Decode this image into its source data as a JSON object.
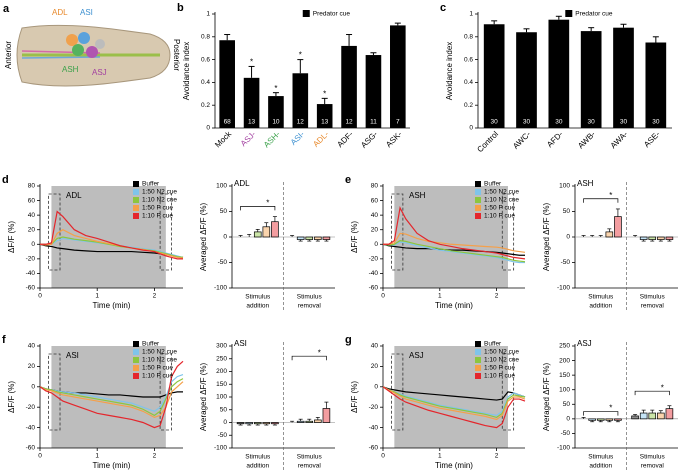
{
  "panel_a": {
    "letter": "a",
    "labels": [
      "ADL",
      "ASI",
      "ASH",
      "ASJ",
      "Anterior",
      "Posterior"
    ]
  },
  "chart_data": [
    {
      "type": "bar",
      "panel": "b",
      "y_label": "Avoidance index",
      "legend": "Predator cue",
      "color": "#000000",
      "categories": [
        "Mock",
        "ASJ-",
        "ASH-",
        "ASI-",
        "ADL-",
        "ADF-",
        "ASG-",
        "ASK-"
      ],
      "category_colors": [
        "#000000",
        "#a23fa0",
        "#3aa14a",
        "#3b8fd0",
        "#e8892b",
        "#000000",
        "#000000",
        "#000000"
      ],
      "values": [
        0.77,
        0.44,
        0.28,
        0.48,
        0.21,
        0.72,
        0.64,
        0.9
      ],
      "errors": [
        0.05,
        0.1,
        0.03,
        0.12,
        0.05,
        0.1,
        0.02,
        0.02
      ],
      "n": [
        68,
        13,
        10,
        12,
        13,
        12,
        11,
        7
      ],
      "significance": [
        null,
        "*",
        "*",
        "*",
        "*",
        null,
        null,
        null
      ],
      "ylim": [
        0,
        1
      ],
      "yticks": [
        0,
        0.2,
        0.4,
        0.6,
        0.8,
        1
      ]
    },
    {
      "type": "bar",
      "panel": "c",
      "y_label": "Avoidance index",
      "legend": "Predator cue",
      "color": "#000000",
      "categories": [
        "Control",
        "AWC-",
        "AFD-",
        "AWB-",
        "AWA-",
        "ASE-"
      ],
      "category_colors": [
        "#000000",
        "#000000",
        "#000000",
        "#000000",
        "#000000",
        "#000000"
      ],
      "values": [
        0.91,
        0.84,
        0.95,
        0.85,
        0.88,
        0.75
      ],
      "errors": [
        0.03,
        0.03,
        0.03,
        0.03,
        0.03,
        0.05
      ],
      "n": [
        30,
        30,
        30,
        30,
        30,
        30
      ],
      "ylim": [
        0,
        1
      ],
      "yticks": [
        0,
        0.2,
        0.4,
        0.6,
        0.8,
        1
      ]
    },
    {
      "type": "line",
      "panel": "d",
      "label": "ADL",
      "x_label": "Time (min)",
      "y_label": "ΔF/F (%)",
      "x": [
        0,
        0.1,
        0.2,
        0.3,
        0.4,
        0.6,
        0.8,
        1.0,
        1.2,
        1.4,
        1.6,
        1.8,
        2.0,
        2.1,
        2.2,
        2.3,
        2.4,
        2.5
      ],
      "xlim": [
        0,
        2.5
      ],
      "xticks": [
        0,
        1,
        2
      ],
      "ylim": [
        -60,
        80
      ],
      "yticks": [
        -60,
        -40,
        -20,
        0,
        20,
        40,
        60,
        80
      ],
      "shade": [
        0.2,
        2.2
      ],
      "windows": [
        [
          0.15,
          0.35
        ],
        [
          2.1,
          2.3
        ]
      ],
      "series": [
        {
          "name": "Buffer",
          "color": "#000000",
          "values": [
            0,
            -2,
            -3,
            -5,
            -6,
            -8,
            -9,
            -10,
            -10,
            -10,
            -10,
            -11,
            -12,
            -13,
            -14,
            -15,
            -17,
            -18
          ]
        },
        {
          "name": "1:50 N2 cue",
          "color": "#7fc4ea",
          "values": [
            0,
            0,
            0,
            5,
            8,
            6,
            4,
            2,
            0,
            -2,
            -4,
            -6,
            -8,
            -10,
            -12,
            -14,
            -16,
            -18
          ]
        },
        {
          "name": "1:10 N2 cue",
          "color": "#8cc63f",
          "values": [
            0,
            0,
            0,
            8,
            10,
            7,
            5,
            3,
            0,
            -3,
            -5,
            -7,
            -9,
            -11,
            -13,
            -15,
            -17,
            -18
          ]
        },
        {
          "name": "1:50 P cue",
          "color": "#f5a04a",
          "values": [
            0,
            -1,
            0,
            15,
            20,
            12,
            8,
            4,
            1,
            -2,
            -5,
            -7,
            -10,
            -12,
            -14,
            -16,
            -18,
            -19
          ]
        },
        {
          "name": "1:10 P cue",
          "color": "#e4262c",
          "values": [
            0,
            0,
            2,
            45,
            38,
            20,
            12,
            8,
            3,
            -2,
            -5,
            -8,
            -10,
            -13,
            -16,
            -18,
            -20,
            -20
          ]
        }
      ]
    },
    {
      "type": "bar",
      "label": "ADL",
      "y_label": "Averaged ΔF/F (%)",
      "groups": [
        [
          "Stimulus",
          "addition"
        ],
        [
          "Stimulus",
          "removal"
        ]
      ],
      "ylim": [
        -100,
        100
      ],
      "yticks": [
        -100,
        -50,
        0,
        50,
        100
      ],
      "series": [
        {
          "color": "#000000",
          "values": [
            0,
            0
          ],
          "errors": [
            3,
            3
          ]
        },
        {
          "color": "#7fc4ea",
          "values": [
            0,
            -5
          ],
          "errors": [
            5,
            3
          ]
        },
        {
          "color": "#8cc63f",
          "values": [
            10,
            -5
          ],
          "errors": [
            5,
            3
          ]
        },
        {
          "color": "#f5a04a",
          "values": [
            20,
            -5
          ],
          "errors": [
            8,
            3
          ]
        },
        {
          "color": "#e4262c",
          "values": [
            30,
            -5
          ],
          "errors": [
            10,
            3
          ]
        }
      ],
      "brackets": [
        {
          "group": 0,
          "from": 0,
          "to": 4,
          "y": 60,
          "label": "*"
        }
      ]
    },
    {
      "type": "line",
      "panel": "e",
      "label": "ASH",
      "x_label": "Time (min)",
      "y_label": "ΔF/F (%)",
      "x": [
        0,
        0.1,
        0.2,
        0.3,
        0.4,
        0.6,
        0.8,
        1.0,
        1.2,
        1.4,
        1.6,
        1.8,
        2.0,
        2.1,
        2.2,
        2.3,
        2.4,
        2.5
      ],
      "xlim": [
        0,
        2.5
      ],
      "xticks": [
        0,
        1,
        2
      ],
      "ylim": [
        -60,
        80
      ],
      "yticks": [
        -60,
        -40,
        -20,
        0,
        20,
        40,
        60,
        80
      ],
      "shade": [
        0.2,
        2.2
      ],
      "windows": [
        [
          0.15,
          0.35
        ],
        [
          2.1,
          2.3
        ]
      ],
      "series": [
        {
          "name": "Buffer",
          "color": "#000000",
          "values": [
            0,
            -2,
            -3,
            -4,
            -5,
            -6,
            -6,
            -7,
            -8,
            -8,
            -9,
            -10,
            -11,
            -12,
            -13,
            -14,
            -15,
            -15
          ]
        },
        {
          "name": "1:50 N2 cue",
          "color": "#7fc4ea",
          "values": [
            0,
            -1,
            -1,
            3,
            2,
            -2,
            -5,
            -8,
            -10,
            -12,
            -14,
            -16,
            -18,
            -20,
            -22,
            -24,
            -25,
            -25
          ]
        },
        {
          "name": "1:10 N2 cue",
          "color": "#8cc63f",
          "values": [
            0,
            -1,
            0,
            5,
            4,
            0,
            -3,
            -6,
            -9,
            -11,
            -13,
            -15,
            -17,
            -18,
            -20,
            -22,
            -23,
            -24
          ]
        },
        {
          "name": "1:50 P cue",
          "color": "#f5a04a",
          "values": [
            0,
            0,
            2,
            15,
            14,
            8,
            4,
            2,
            0,
            -1,
            -2,
            -3,
            -4,
            -5,
            -7,
            -9,
            -10,
            -11
          ]
        },
        {
          "name": "1:10 P cue",
          "color": "#e4262c",
          "values": [
            0,
            0,
            5,
            50,
            35,
            15,
            5,
            0,
            -3,
            -6,
            -8,
            -10,
            -12,
            -14,
            -16,
            -18,
            -19,
            -20
          ]
        }
      ]
    },
    {
      "type": "bar",
      "label": "ASH",
      "y_label": "Averaged ΔF/F (%)",
      "groups": [
        [
          "Stimulus",
          "addition"
        ],
        [
          "Stimulus",
          "removal"
        ]
      ],
      "ylim": [
        -100,
        100
      ],
      "yticks": [
        -100,
        -50,
        0,
        50,
        100
      ],
      "series": [
        {
          "color": "#000000",
          "values": [
            0,
            0
          ],
          "errors": [
            3,
            3
          ]
        },
        {
          "color": "#7fc4ea",
          "values": [
            0,
            -5
          ],
          "errors": [
            3,
            3
          ]
        },
        {
          "color": "#8cc63f",
          "values": [
            0,
            -5
          ],
          "errors": [
            3,
            3
          ]
        },
        {
          "color": "#f5a04a",
          "values": [
            10,
            -5
          ],
          "errors": [
            6,
            3
          ]
        },
        {
          "color": "#e4262c",
          "values": [
            40,
            -5
          ],
          "errors": [
            15,
            3
          ]
        }
      ],
      "brackets": [
        {
          "group": 0,
          "from": 0,
          "to": 4,
          "y": 75,
          "label": "*"
        }
      ]
    },
    {
      "type": "line",
      "panel": "f",
      "label": "ASI",
      "x_label": "Time (min)",
      "y_label": "ΔF/F (%)",
      "x": [
        0,
        0.1,
        0.2,
        0.3,
        0.4,
        0.6,
        0.8,
        1.0,
        1.2,
        1.4,
        1.6,
        1.8,
        2.0,
        2.1,
        2.2,
        2.3,
        2.4,
        2.5
      ],
      "xlim": [
        0,
        2.5
      ],
      "xticks": [
        0,
        1,
        2
      ],
      "ylim": [
        -60,
        40
      ],
      "yticks": [
        -60,
        -40,
        -20,
        0,
        20,
        40
      ],
      "shade": [
        0.2,
        2.2
      ],
      "windows": [
        [
          0.15,
          0.35
        ],
        [
          2.1,
          2.3
        ]
      ],
      "series": [
        {
          "name": "Buffer",
          "color": "#000000",
          "values": [
            0,
            -2,
            -3,
            -4,
            -5,
            -6,
            -6,
            -7,
            -8,
            -8,
            -9,
            -10,
            -10,
            -10,
            -8,
            -6,
            -5,
            -5
          ]
        },
        {
          "name": "1:50 N2 cue",
          "color": "#7fc4ea",
          "values": [
            0,
            -2,
            -3,
            -4,
            -5,
            -6,
            -8,
            -10,
            -12,
            -14,
            -16,
            -20,
            -24,
            -20,
            -10,
            5,
            10,
            12
          ]
        },
        {
          "name": "1:10 N2 cue",
          "color": "#8cc63f",
          "values": [
            0,
            -2,
            -3,
            -5,
            -6,
            -8,
            -10,
            -12,
            -14,
            -16,
            -18,
            -22,
            -28,
            -24,
            -12,
            0,
            5,
            8
          ]
        },
        {
          "name": "1:50 P cue",
          "color": "#f5a04a",
          "values": [
            0,
            -3,
            -4,
            -6,
            -8,
            -10,
            -12,
            -14,
            -16,
            -18,
            -20,
            -24,
            -30,
            -28,
            -20,
            -5,
            0,
            5
          ]
        },
        {
          "name": "1:10 P cue",
          "color": "#e4262c",
          "values": [
            0,
            -4,
            -6,
            -10,
            -14,
            -18,
            -22,
            -26,
            -28,
            -30,
            -32,
            -35,
            -40,
            -38,
            -20,
            10,
            20,
            25
          ]
        }
      ]
    },
    {
      "type": "bar",
      "label": "ASI",
      "y_label": "Averaged ΔF/F (%)",
      "groups": [
        [
          "Stimulus",
          "addition"
        ],
        [
          "Stimulus",
          "removal"
        ]
      ],
      "ylim": [
        -100,
        300
      ],
      "yticks": [
        -100,
        -50,
        0,
        50,
        100,
        150,
        200,
        250,
        300
      ],
      "series": [
        {
          "color": "#000000",
          "values": [
            -5,
            0
          ],
          "errors": [
            5,
            5
          ]
        },
        {
          "color": "#7fc4ea",
          "values": [
            -5,
            5
          ],
          "errors": [
            5,
            8
          ]
        },
        {
          "color": "#8cc63f",
          "values": [
            -5,
            5
          ],
          "errors": [
            5,
            8
          ]
        },
        {
          "color": "#f5a04a",
          "values": [
            -5,
            10
          ],
          "errors": [
            5,
            10
          ]
        },
        {
          "color": "#e4262c",
          "values": [
            -5,
            55
          ],
          "errors": [
            5,
            25
          ]
        }
      ],
      "brackets": [
        {
          "group": 1,
          "from": 0,
          "to": 4,
          "y": 260,
          "label": "*"
        }
      ]
    },
    {
      "type": "line",
      "panel": "g",
      "label": "ASJ",
      "x_label": "Time (min)",
      "y_label": "ΔF/F (%)",
      "x": [
        0,
        0.1,
        0.2,
        0.3,
        0.4,
        0.6,
        0.8,
        1.0,
        1.2,
        1.4,
        1.6,
        1.8,
        2.0,
        2.1,
        2.2,
        2.3,
        2.4,
        2.5
      ],
      "xlim": [
        0,
        2.5
      ],
      "xticks": [
        0,
        1,
        2
      ],
      "ylim": [
        -60,
        40
      ],
      "yticks": [
        -60,
        -40,
        -20,
        0,
        20,
        40
      ],
      "shade": [
        0.2,
        2.2
      ],
      "windows": [
        [
          0.15,
          0.35
        ],
        [
          2.1,
          2.3
        ]
      ],
      "series": [
        {
          "name": "Buffer",
          "color": "#000000",
          "values": [
            0,
            -2,
            -3,
            -4,
            -5,
            -6,
            -7,
            -8,
            -9,
            -10,
            -11,
            -12,
            -13,
            -12,
            -5,
            -6,
            -8,
            -10
          ]
        },
        {
          "name": "1:50 N2 cue",
          "color": "#7fc4ea",
          "values": [
            0,
            -3,
            -5,
            -7,
            -9,
            -12,
            -15,
            -18,
            -20,
            -22,
            -24,
            -26,
            -28,
            -24,
            -10,
            -6,
            -8,
            -10
          ]
        },
        {
          "name": "1:10 N2 cue",
          "color": "#8cc63f",
          "values": [
            0,
            -3,
            -5,
            -8,
            -10,
            -13,
            -16,
            -19,
            -21,
            -23,
            -25,
            -27,
            -30,
            -26,
            -12,
            -8,
            -9,
            -10
          ]
        },
        {
          "name": "1:50 P cue",
          "color": "#f5a04a",
          "values": [
            0,
            -3,
            -6,
            -9,
            -12,
            -15,
            -18,
            -21,
            -23,
            -25,
            -27,
            -29,
            -32,
            -28,
            -14,
            -10,
            -10,
            -12
          ]
        },
        {
          "name": "1:10 P cue",
          "color": "#e4262c",
          "values": [
            0,
            -4,
            -8,
            -12,
            -15,
            -19,
            -23,
            -26,
            -29,
            -32,
            -35,
            -38,
            -40,
            -36,
            -20,
            -12,
            -12,
            -14
          ]
        }
      ]
    },
    {
      "type": "bar",
      "label": "ASJ",
      "y_label": "Averaged ΔF/F (%)",
      "groups": [
        [
          "Stimulus",
          "addition"
        ],
        [
          "Stimulus",
          "removal"
        ]
      ],
      "ylim": [
        -100,
        250
      ],
      "yticks": [
        -100,
        -50,
        0,
        50,
        100,
        150,
        200,
        250
      ],
      "series": [
        {
          "color": "#000000",
          "values": [
            0,
            10
          ],
          "errors": [
            5,
            5
          ]
        },
        {
          "color": "#7fc4ea",
          "values": [
            -5,
            20
          ],
          "errors": [
            5,
            10
          ]
        },
        {
          "color": "#8cc63f",
          "values": [
            -5,
            20
          ],
          "errors": [
            5,
            10
          ]
        },
        {
          "color": "#f5a04a",
          "values": [
            -5,
            20
          ],
          "errors": [
            5,
            8
          ]
        },
        {
          "color": "#e4262c",
          "values": [
            -5,
            35
          ],
          "errors": [
            5,
            10
          ]
        }
      ],
      "brackets": [
        {
          "group": 0,
          "from": 0,
          "to": 4,
          "y": 25,
          "label": "*"
        },
        {
          "group": 1,
          "from": 0,
          "to": 4,
          "y": 95,
          "label": "*"
        }
      ]
    }
  ]
}
